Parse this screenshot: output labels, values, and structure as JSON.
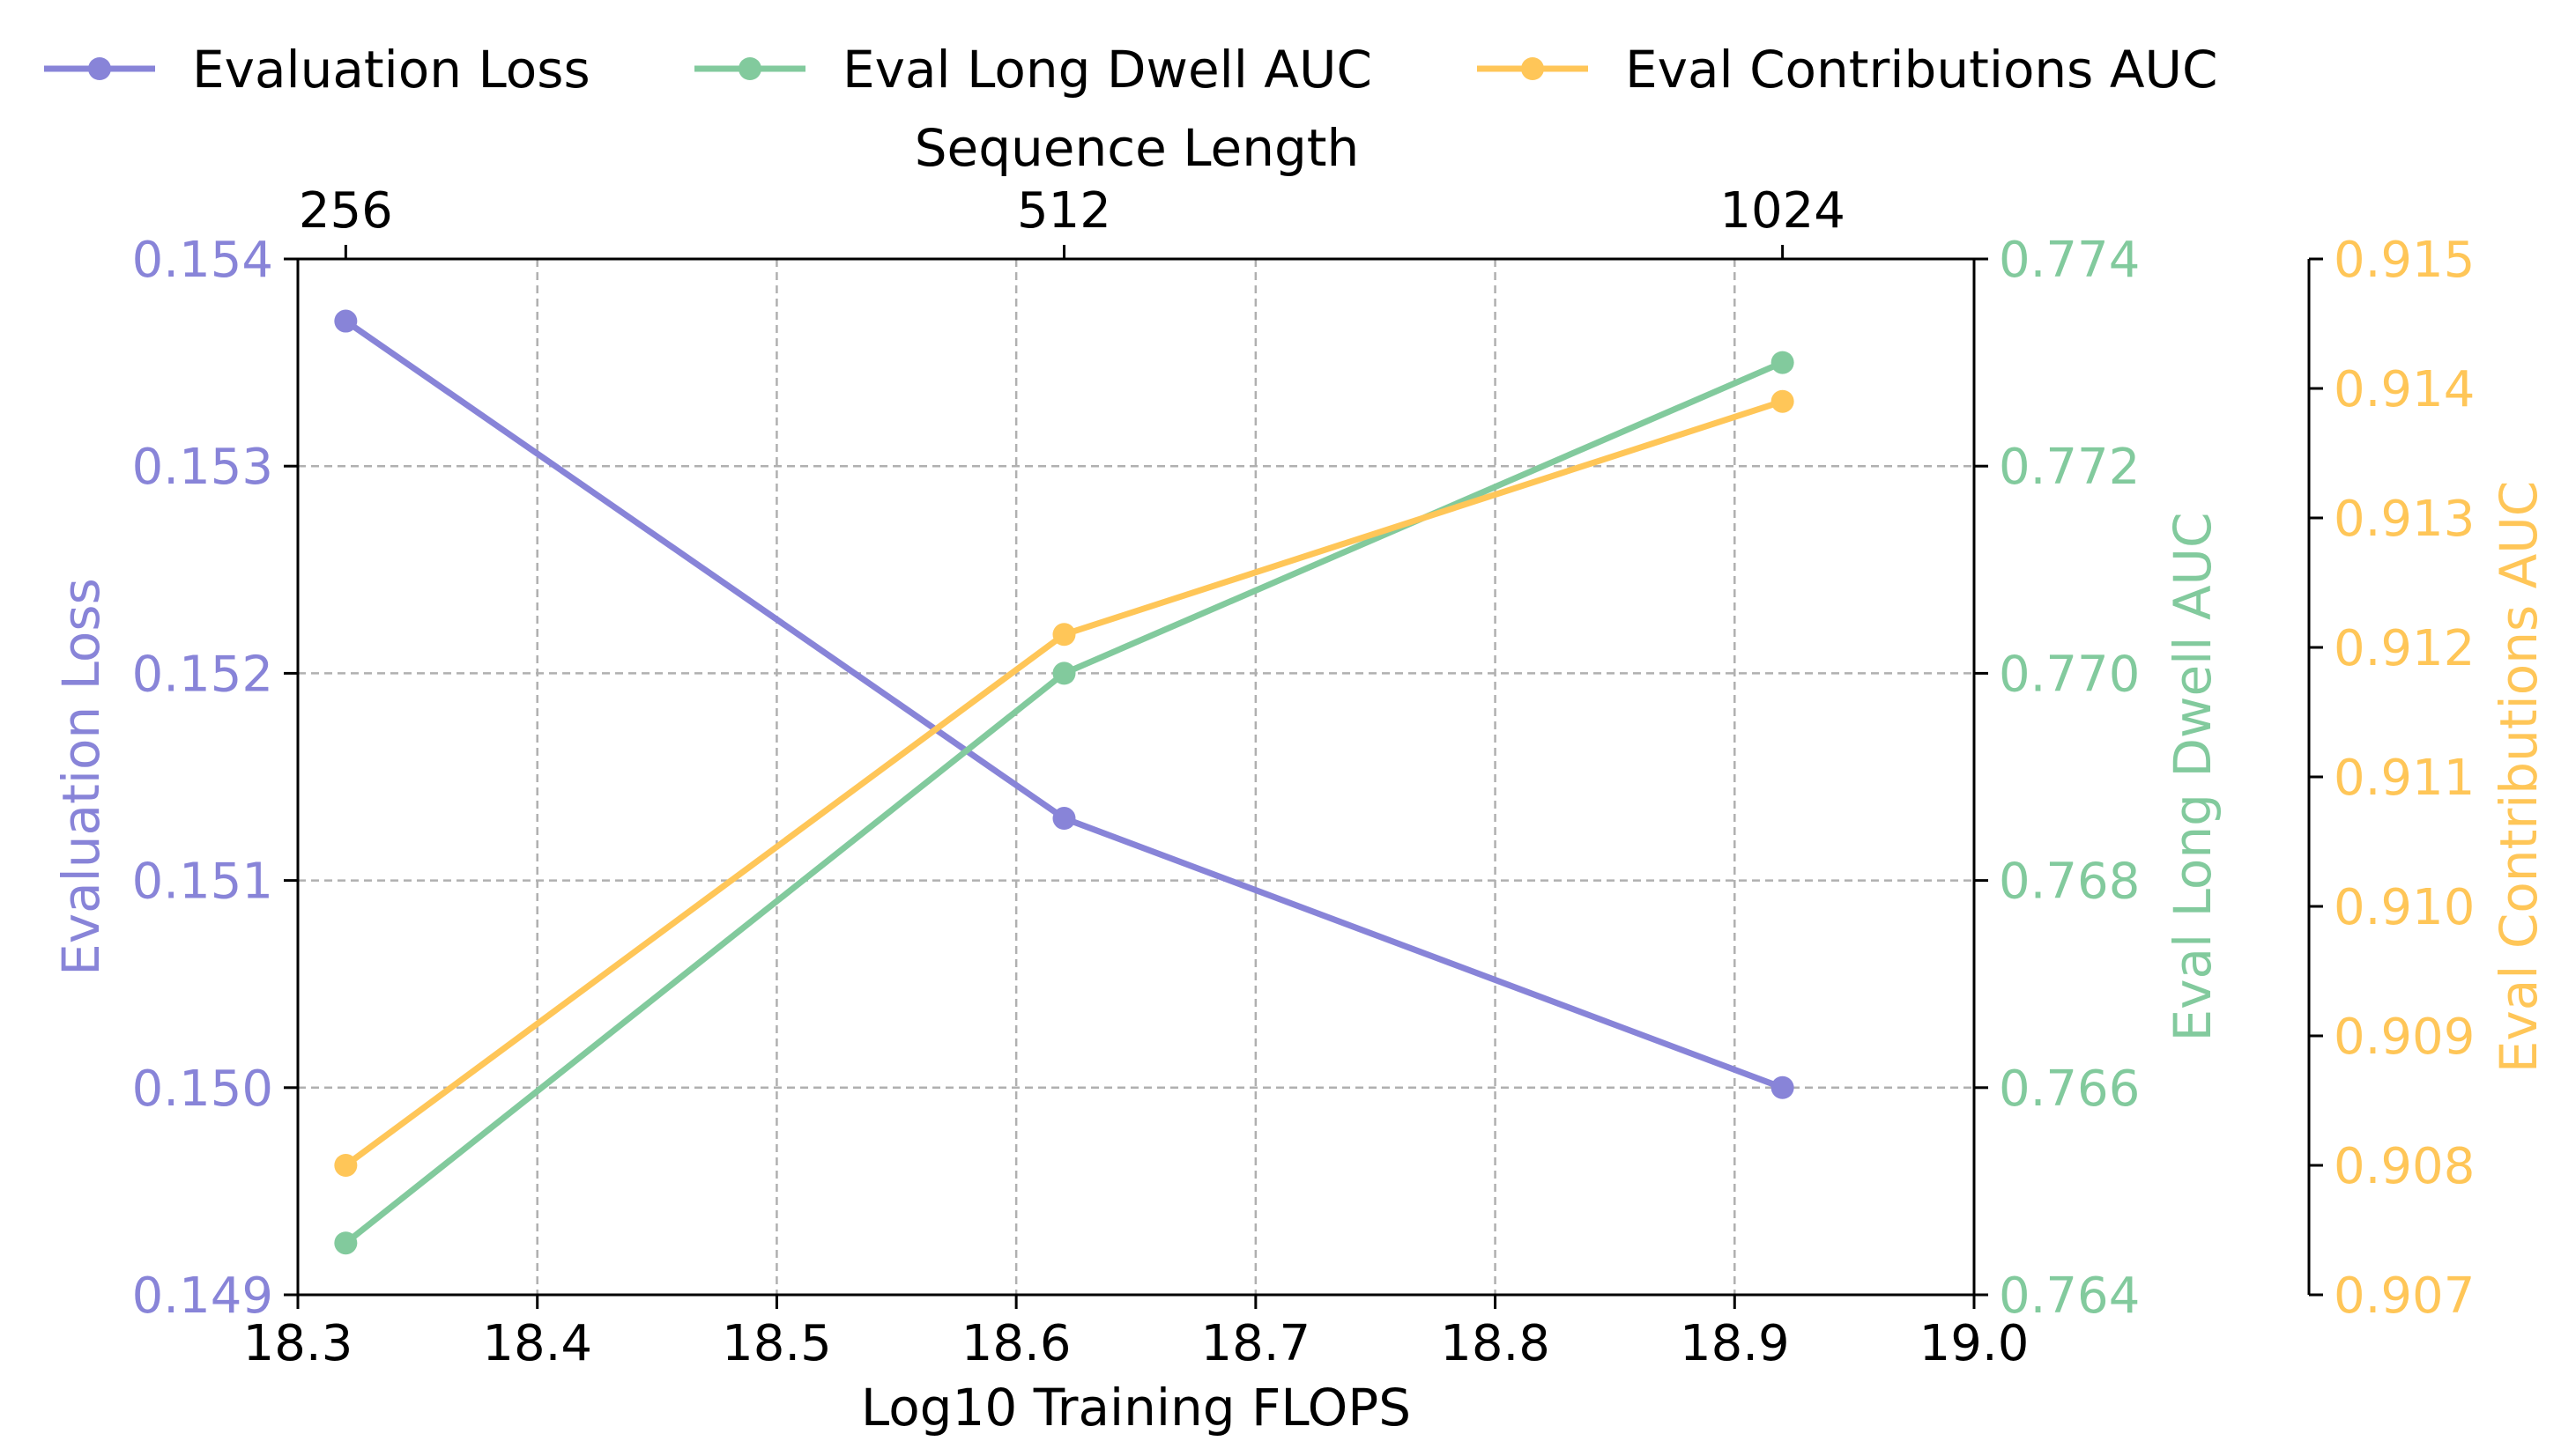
{
  "chart_data": {
    "type": "line",
    "x": [
      18.32,
      18.62,
      18.92
    ],
    "xlim": [
      18.3,
      19.0
    ],
    "xticks": [
      "18.3",
      "18.4",
      "18.5",
      "18.6",
      "18.7",
      "18.8",
      "18.9",
      "19.0"
    ],
    "xlabel": "Log10 Training FLOPS",
    "top_axis": {
      "label": "Sequence Length",
      "ticks": [
        {
          "x": 18.32,
          "label": "256"
        },
        {
          "x": 18.62,
          "label": "512"
        },
        {
          "x": 18.92,
          "label": "1024"
        }
      ]
    },
    "grid": true,
    "legend_position": "top",
    "series": [
      {
        "name": "Evaluation Loss",
        "axis": "left",
        "color": "#8884d8",
        "values": [
          0.1537,
          0.1513,
          0.15
        ],
        "ylim": [
          0.149,
          0.154
        ],
        "yticks": [
          "0.149",
          "0.150",
          "0.151",
          "0.152",
          "0.153",
          "0.154"
        ],
        "ylabel": "Evaluation Loss"
      },
      {
        "name": "Eval Long Dwell AUC",
        "axis": "right",
        "color": "#82ca9d",
        "values": [
          0.7645,
          0.77,
          0.773
        ],
        "ylim": [
          0.764,
          0.774
        ],
        "yticks": [
          "0.764",
          "0.766",
          "0.768",
          "0.770",
          "0.772",
          "0.774"
        ],
        "ylabel": "Eval Long Dwell AUC"
      },
      {
        "name": "Eval Contributions AUC",
        "axis": "far-right",
        "color": "#ffc658",
        "values": [
          0.908,
          0.9121,
          0.9139
        ],
        "ylim": [
          0.907,
          0.915
        ],
        "yticks": [
          "0.907",
          "0.908",
          "0.909",
          "0.910",
          "0.911",
          "0.912",
          "0.913",
          "0.914",
          "0.915"
        ],
        "ylabel": "Eval Contributions AUC"
      }
    ]
  }
}
